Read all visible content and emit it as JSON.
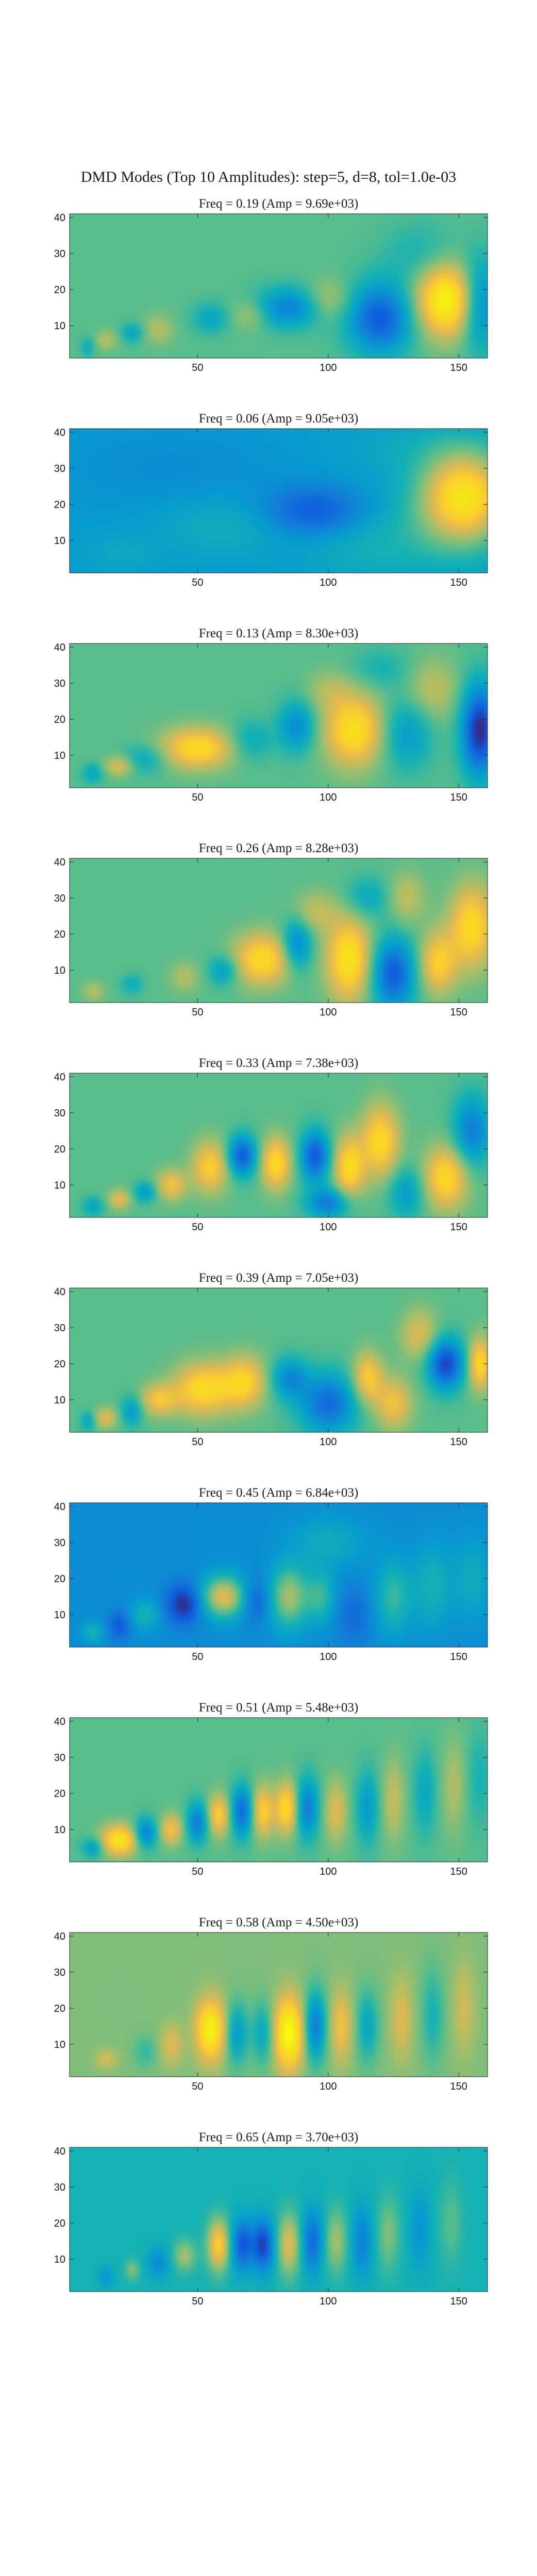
{
  "figure_title": "DMD Modes (Top 10 Amplitudes): step=5, d=8, tol=1.0e-03",
  "chart_data": {
    "type": "heatmap",
    "colormap": "parula",
    "x_ticks": [
      50,
      100,
      150
    ],
    "y_ticks": [
      10,
      20,
      30,
      40
    ],
    "xlim": [
      1,
      161
    ],
    "ylim": [
      1,
      41
    ],
    "panels": [
      {
        "title": "Freq = 0.19 (Amp = 9.69e+03)",
        "freq": 0.19,
        "amp": 9690,
        "background": 0.5,
        "blobs": [
          [
            145,
            17,
            8,
            7,
            0.48
          ],
          [
            120,
            12,
            9,
            7,
            -0.4
          ],
          [
            158,
            16,
            5,
            9,
            -0.3
          ],
          [
            85,
            15,
            9,
            4,
            -0.28
          ],
          [
            100,
            17,
            6,
            4,
            0.15
          ],
          [
            70,
            13,
            5,
            3,
            0.12
          ],
          [
            55,
            12,
            5,
            3,
            -0.15
          ],
          [
            35,
            9,
            4,
            3,
            0.12
          ],
          [
            25,
            8,
            3,
            2,
            -0.15
          ],
          [
            15,
            6,
            3,
            2,
            0.12
          ],
          [
            8,
            4,
            2,
            2,
            -0.12
          ],
          [
            135,
            30,
            10,
            6,
            -0.1
          ]
        ]
      },
      {
        "title": "Freq = 0.06 (Amp = 9.05e+03)",
        "freq": 0.06,
        "amp": 9050,
        "background": 0.3,
        "blobs": [
          [
            152,
            22,
            12,
            9,
            0.6
          ],
          [
            95,
            18,
            14,
            5,
            -0.22
          ],
          [
            60,
            14,
            18,
            6,
            0.08
          ],
          [
            120,
            10,
            20,
            8,
            0.1
          ],
          [
            40,
            30,
            30,
            8,
            -0.05
          ],
          [
            130,
            36,
            20,
            6,
            0.05
          ],
          [
            20,
            6,
            10,
            4,
            0.05
          ]
        ]
      },
      {
        "title": "Freq = 0.13 (Amp = 8.30e+03)",
        "freq": 0.13,
        "amp": 8300,
        "background": 0.5,
        "blobs": [
          [
            50,
            12,
            10,
            4,
            0.35
          ],
          [
            30,
            9,
            6,
            3,
            -0.15
          ],
          [
            20,
            7,
            4,
            2,
            0.2
          ],
          [
            10,
            5,
            3,
            2,
            -0.15
          ],
          [
            70,
            14,
            6,
            4,
            -0.15
          ],
          [
            88,
            18,
            5,
            5,
            -0.25
          ],
          [
            110,
            17,
            8,
            7,
            0.38
          ],
          [
            130,
            16,
            7,
            7,
            -0.2
          ],
          [
            158,
            17,
            5,
            9,
            -0.5
          ],
          [
            140,
            28,
            7,
            6,
            0.15
          ],
          [
            100,
            28,
            6,
            4,
            0.1
          ],
          [
            120,
            34,
            8,
            4,
            -0.1
          ]
        ]
      },
      {
        "title": "Freq = 0.26 (Amp = 8.28e+03)",
        "freq": 0.26,
        "amp": 8280,
        "background": 0.5,
        "blobs": [
          [
            75,
            13,
            8,
            5,
            0.35
          ],
          [
            88,
            17,
            4,
            5,
            -0.3
          ],
          [
            108,
            13,
            6,
            8,
            0.4
          ],
          [
            125,
            9,
            6,
            7,
            -0.4
          ],
          [
            142,
            12,
            5,
            6,
            0.3
          ],
          [
            155,
            22,
            6,
            8,
            0.35
          ],
          [
            95,
            26,
            6,
            4,
            0.15
          ],
          [
            115,
            30,
            6,
            4,
            -0.15
          ],
          [
            130,
            30,
            5,
            5,
            0.15
          ],
          [
            60,
            10,
            4,
            3,
            -0.2
          ],
          [
            45,
            8,
            4,
            3,
            0.12
          ],
          [
            25,
            6,
            3,
            2,
            -0.12
          ],
          [
            10,
            4,
            3,
            2,
            0.12
          ]
        ]
      },
      {
        "title": "Freq = 0.33 (Amp = 7.38e+03)",
        "freq": 0.33,
        "amp": 7380,
        "background": 0.5,
        "blobs": [
          [
            55,
            15,
            5,
            5,
            0.3
          ],
          [
            67,
            18,
            4,
            4,
            -0.4
          ],
          [
            80,
            16,
            4,
            5,
            0.35
          ],
          [
            95,
            18,
            4,
            5,
            -0.4
          ],
          [
            108,
            15,
            4,
            6,
            0.35
          ],
          [
            120,
            22,
            5,
            7,
            0.35
          ],
          [
            145,
            12,
            6,
            6,
            0.35
          ],
          [
            155,
            25,
            5,
            7,
            -0.3
          ],
          [
            130,
            8,
            5,
            5,
            -0.2
          ],
          [
            100,
            5,
            6,
            3,
            -0.3
          ],
          [
            40,
            10,
            4,
            3,
            0.25
          ],
          [
            30,
            8,
            3,
            2,
            -0.2
          ],
          [
            20,
            6,
            3,
            2,
            0.2
          ],
          [
            10,
            4,
            3,
            2,
            -0.15
          ]
        ]
      },
      {
        "title": "Freq = 0.39 (Amp = 7.05e+03)",
        "freq": 0.39,
        "amp": 7050,
        "background": 0.5,
        "blobs": [
          [
            52,
            13,
            8,
            5,
            0.35
          ],
          [
            68,
            15,
            6,
            5,
            0.3
          ],
          [
            85,
            16,
            5,
            4,
            -0.25
          ],
          [
            100,
            9,
            8,
            6,
            -0.35
          ],
          [
            115,
            16,
            4,
            5,
            0.3
          ],
          [
            125,
            9,
            5,
            5,
            0.25
          ],
          [
            145,
            20,
            5,
            5,
            -0.45
          ],
          [
            158,
            20,
            3,
            5,
            0.35
          ],
          [
            135,
            28,
            5,
            5,
            0.2
          ],
          [
            35,
            10,
            5,
            3,
            0.25
          ],
          [
            25,
            7,
            3,
            3,
            -0.2
          ],
          [
            15,
            5,
            3,
            2,
            0.2
          ],
          [
            8,
            4,
            2,
            2,
            -0.15
          ]
        ]
      },
      {
        "title": "Freq = 0.45 (Amp = 6.84e+03)",
        "freq": 0.45,
        "amp": 6840,
        "background": 0.25,
        "blobs": [
          [
            60,
            15,
            6,
            4,
            0.45
          ],
          [
            45,
            13,
            5,
            4,
            -0.25
          ],
          [
            72,
            14,
            4,
            4,
            -0.15
          ],
          [
            85,
            15,
            5,
            6,
            0.35
          ],
          [
            97,
            15,
            4,
            5,
            0.2
          ],
          [
            110,
            10,
            5,
            6,
            -0.1
          ],
          [
            125,
            15,
            5,
            7,
            0.2
          ],
          [
            140,
            18,
            5,
            8,
            0.15
          ],
          [
            155,
            20,
            5,
            8,
            0.12
          ],
          [
            30,
            10,
            4,
            3,
            0.15
          ],
          [
            20,
            7,
            3,
            3,
            -0.15
          ],
          [
            10,
            5,
            3,
            2,
            0.15
          ],
          [
            100,
            30,
            10,
            5,
            0.12
          ]
        ]
      },
      {
        "title": "Freq = 0.51 (Amp = 5.48e+03)",
        "freq": 0.51,
        "amp": 5480,
        "background": 0.5,
        "blobs": [
          [
            20,
            7,
            5,
            3,
            0.4
          ],
          [
            30,
            9,
            3,
            3,
            -0.3
          ],
          [
            40,
            10,
            3,
            3,
            0.25
          ],
          [
            50,
            12,
            3,
            4,
            -0.3
          ],
          [
            58,
            14,
            3,
            4,
            0.3
          ],
          [
            67,
            15,
            3,
            5,
            -0.35
          ],
          [
            75,
            15,
            3,
            5,
            0.3
          ],
          [
            84,
            16,
            3,
            5,
            0.35
          ],
          [
            92,
            16,
            3,
            6,
            -0.3
          ],
          [
            103,
            15,
            3,
            6,
            0.2
          ],
          [
            115,
            16,
            3,
            7,
            -0.2
          ],
          [
            125,
            18,
            3,
            8,
            0.15
          ],
          [
            137,
            20,
            3,
            8,
            -0.15
          ],
          [
            148,
            22,
            3,
            9,
            0.12
          ],
          [
            158,
            24,
            3,
            9,
            -0.1
          ],
          [
            10,
            5,
            3,
            2,
            -0.2
          ]
        ]
      },
      {
        "title": "Freq = 0.58 (Amp = 4.50e+03)",
        "freq": 0.58,
        "amp": 4500,
        "background": 0.55,
        "blobs": [
          [
            55,
            14,
            4,
            6,
            0.4
          ],
          [
            65,
            13,
            3,
            6,
            -0.25
          ],
          [
            75,
            13,
            3,
            6,
            -0.2
          ],
          [
            85,
            13,
            4,
            7,
            0.45
          ],
          [
            95,
            15,
            3,
            7,
            -0.35
          ],
          [
            105,
            15,
            3,
            7,
            0.2
          ],
          [
            115,
            15,
            3,
            7,
            -0.2
          ],
          [
            128,
            17,
            3,
            8,
            0.15
          ],
          [
            140,
            18,
            3,
            9,
            -0.15
          ],
          [
            152,
            20,
            3,
            9,
            0.12
          ],
          [
            40,
            10,
            3,
            4,
            0.15
          ],
          [
            30,
            8,
            3,
            3,
            -0.1
          ],
          [
            15,
            6,
            3,
            2,
            0.12
          ]
        ]
      },
      {
        "title": "Freq = 0.65 (Amp = 3.70e+03)",
        "freq": 0.65,
        "amp": 3700,
        "background": 0.4,
        "blobs": [
          [
            58,
            14,
            3,
            5,
            0.4
          ],
          [
            67,
            14,
            3,
            5,
            -0.3
          ],
          [
            75,
            14,
            3,
            5,
            -0.35
          ],
          [
            85,
            14,
            3,
            6,
            0.3
          ],
          [
            94,
            15,
            3,
            6,
            -0.25
          ],
          [
            103,
            15,
            3,
            6,
            0.2
          ],
          [
            113,
            15,
            3,
            7,
            -0.18
          ],
          [
            123,
            17,
            3,
            7,
            0.15
          ],
          [
            135,
            18,
            3,
            8,
            -0.12
          ],
          [
            147,
            20,
            3,
            8,
            0.1
          ],
          [
            45,
            11,
            3,
            3,
            0.2
          ],
          [
            35,
            9,
            3,
            3,
            -0.15
          ],
          [
            25,
            7,
            2,
            2,
            0.15
          ],
          [
            15,
            5,
            2,
            2,
            -0.12
          ]
        ]
      }
    ]
  }
}
